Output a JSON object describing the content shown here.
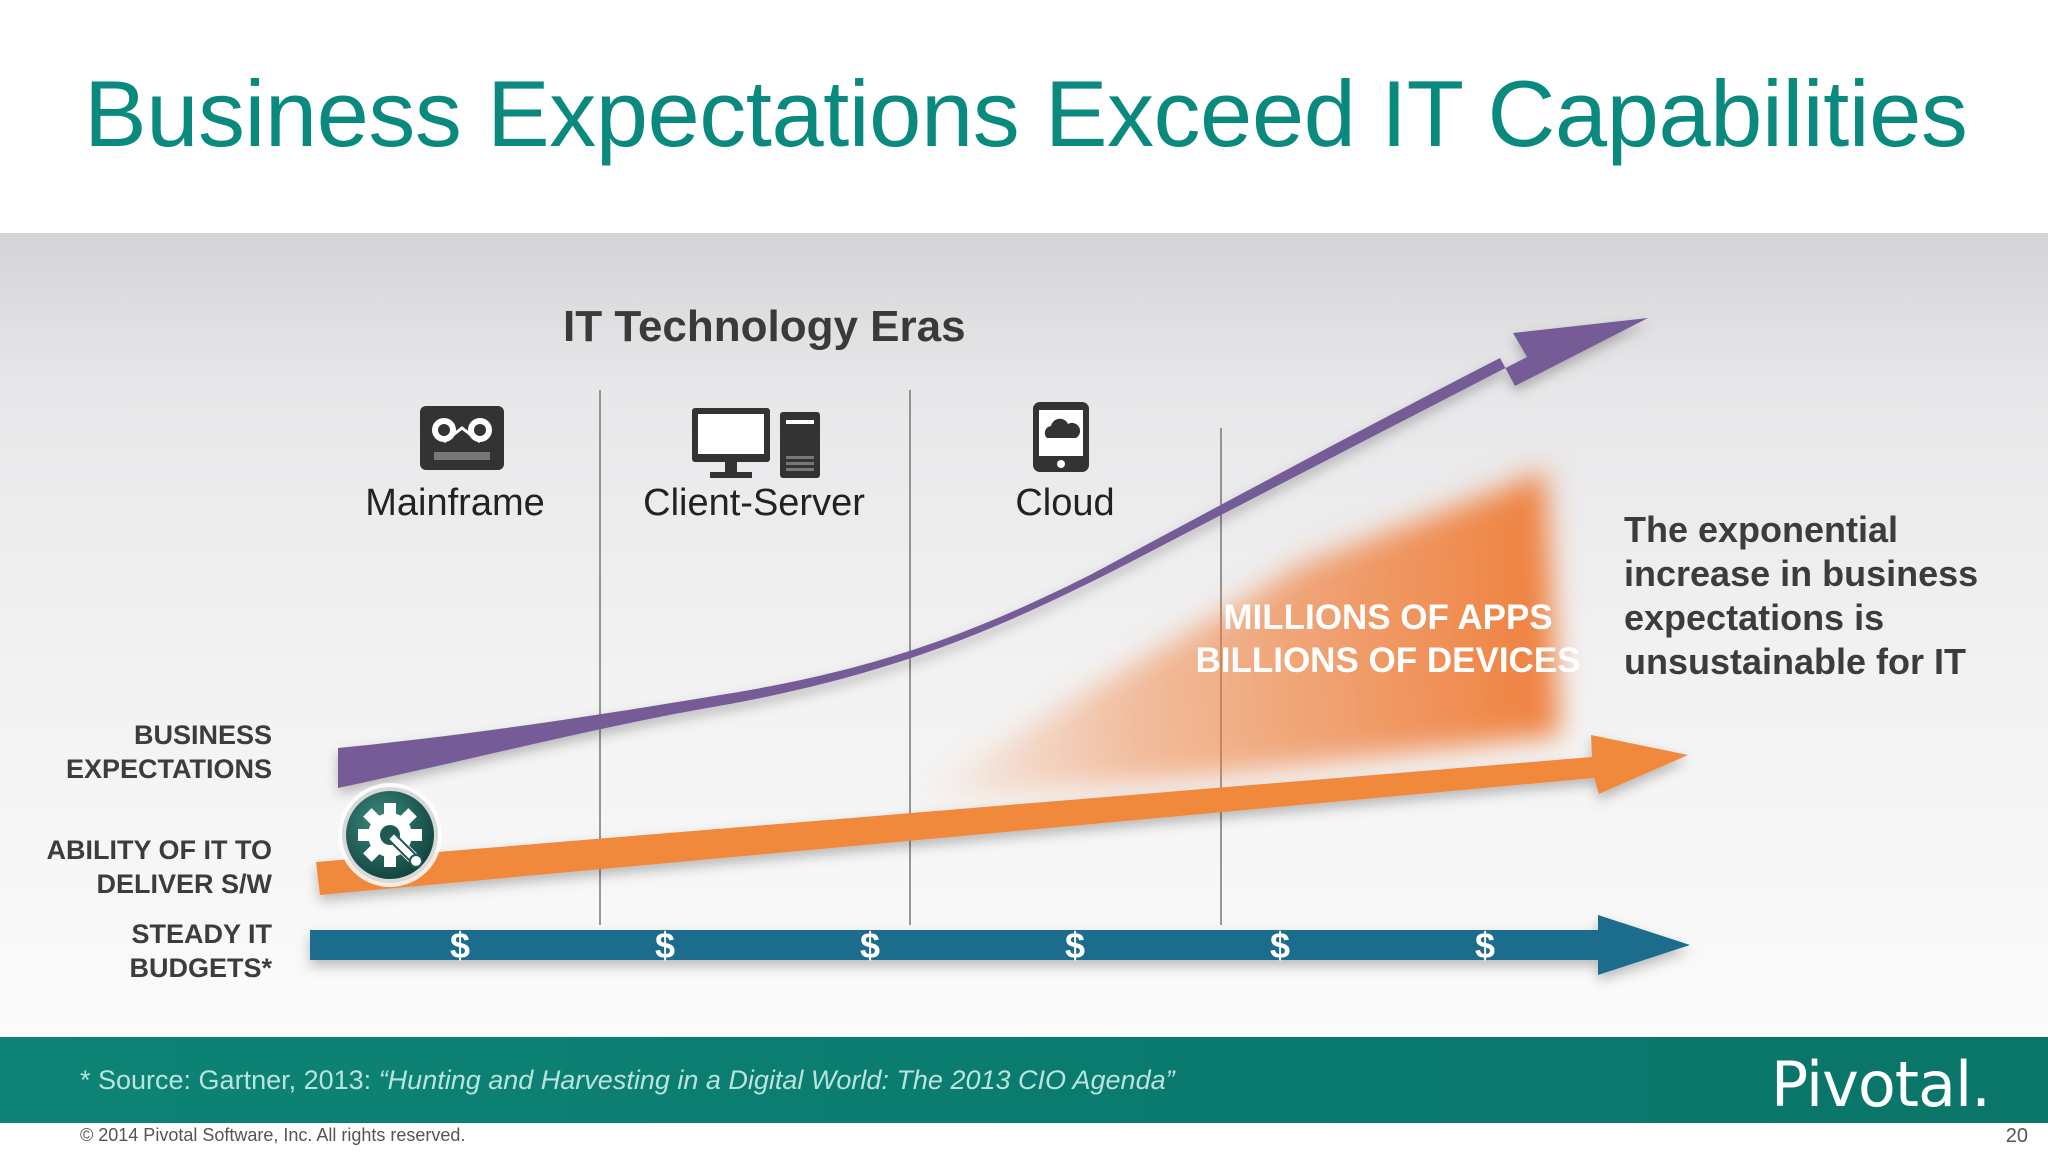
{
  "slide": {
    "title": "Business Expectations Exceed IT Capabilities",
    "page_number": "20",
    "copyright": "© 2014 Pivotal Software, Inc.  All rights reserved.",
    "logo_text": "Pivotal."
  },
  "diagram": {
    "heading": "IT Technology Eras",
    "eras": [
      {
        "label": "Mainframe",
        "icon": "mainframe-tape-icon"
      },
      {
        "label": "Client-Server",
        "icon": "desktop-tower-icon"
      },
      {
        "label": "Cloud",
        "icon": "tablet-cloud-icon"
      }
    ],
    "rows": {
      "business": "BUSINESS\nEXPECTATIONS",
      "ability": "ABILITY OF IT TO\nDELIVER S/W",
      "budgets": "STEADY IT\nBUDGETS*"
    },
    "callout": "MILLIONS OF APPS\nBILLIONS OF DEVICES",
    "side_text": "The exponential increase in business expectations is unsustainable for IT",
    "dollar_symbol": "$",
    "dollar_count": 6,
    "center_icon": "gear-wrench-icon",
    "colors": {
      "title": "#0a8a7e",
      "business_arrow": "#765b97",
      "ability_arrow": "#f1893e",
      "budget_arrow": "#1c6c8e",
      "gap_fill": "#ef7a33",
      "band": "#0a7a6e"
    }
  },
  "source": {
    "prefix": "* Source: Gartner, 2013: ",
    "citation": "“Hunting and Harvesting in a Digital World: The 2013 CIO Agenda”"
  }
}
